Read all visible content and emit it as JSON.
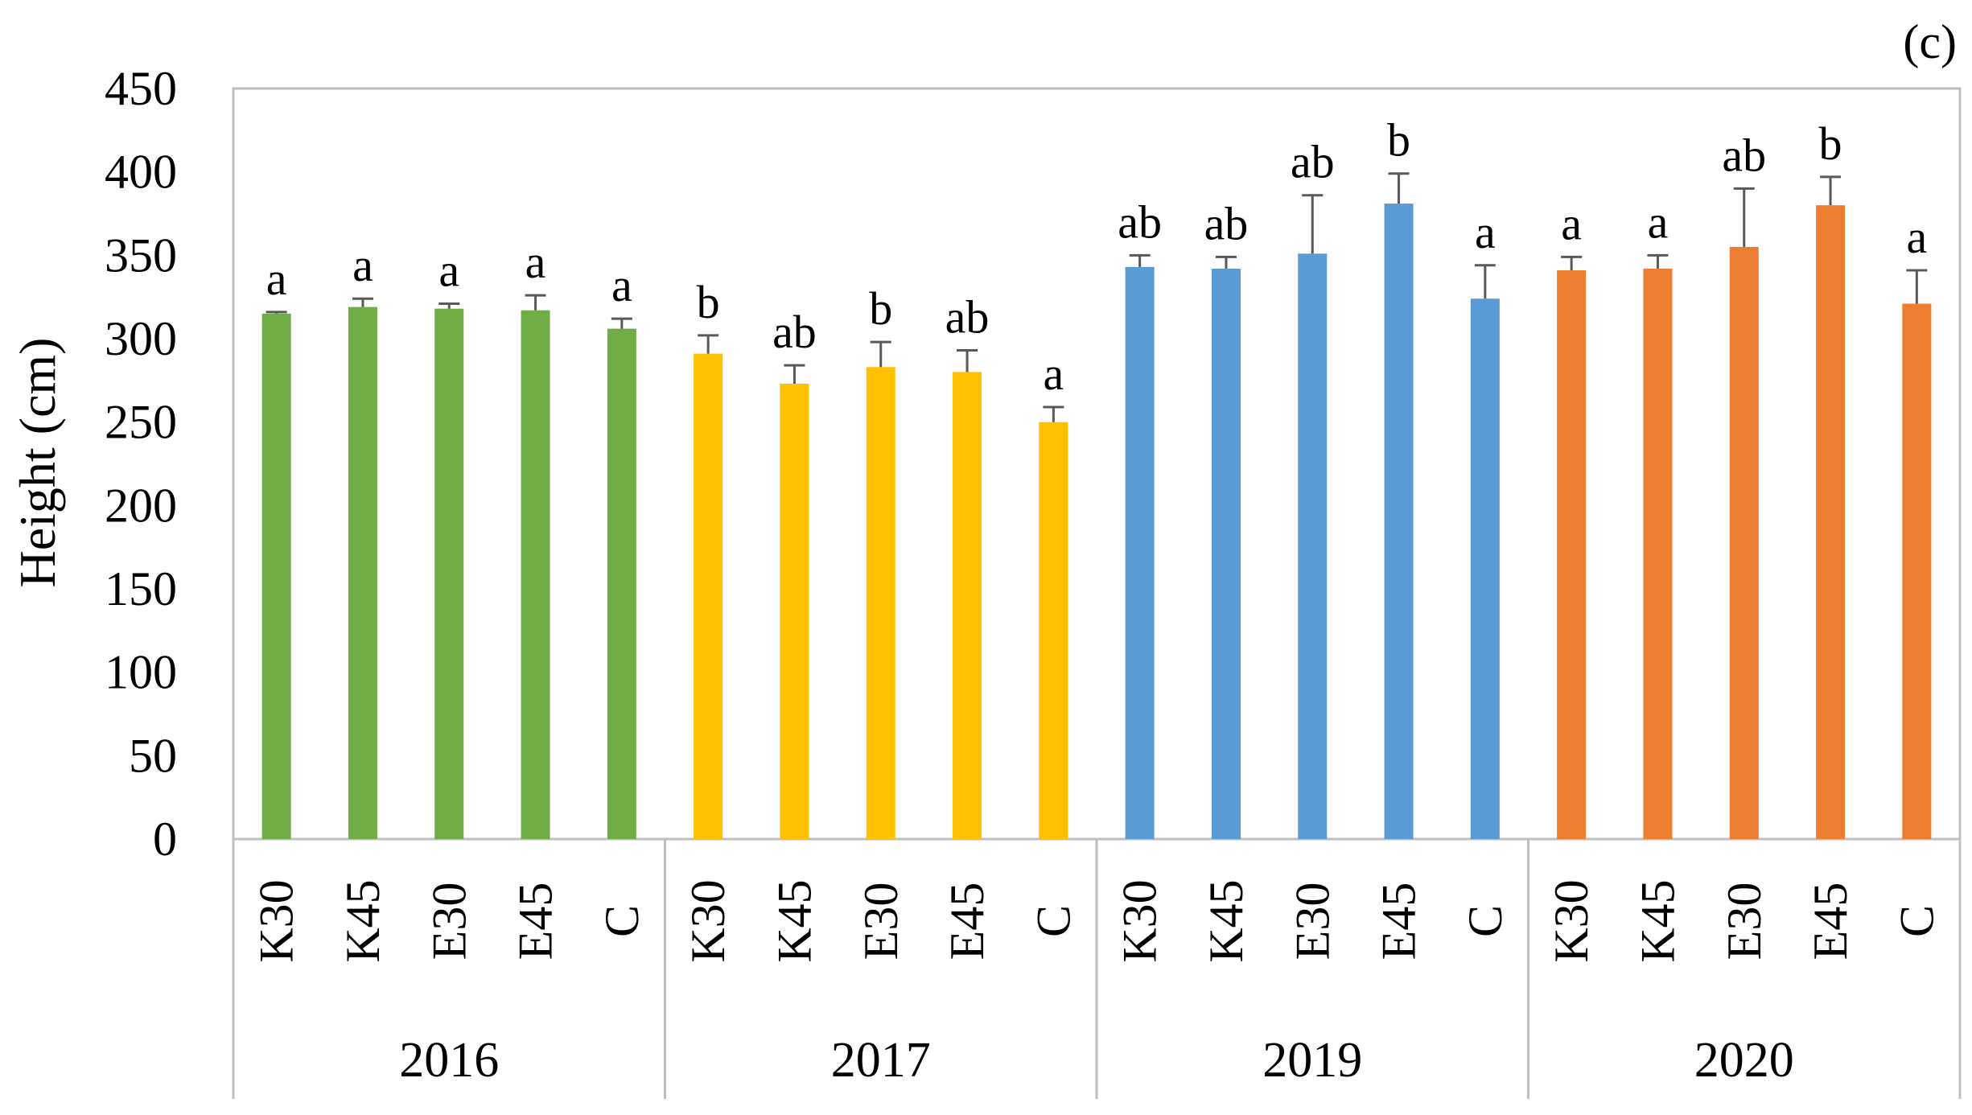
{
  "panel_label": "(c)",
  "chart_data": {
    "type": "bar",
    "ylabel": "Height (cm)",
    "ylim": [
      0,
      450
    ],
    "yticks": [
      0,
      50,
      100,
      150,
      200,
      250,
      300,
      350,
      400,
      450
    ],
    "grid": false,
    "groups": [
      {
        "name": "2016",
        "color": "#70AD47",
        "bars": [
          {
            "category": "K30",
            "value": 315,
            "error": 1,
            "sig": "a"
          },
          {
            "category": "K45",
            "value": 319,
            "error": 5,
            "sig": "a"
          },
          {
            "category": "E30",
            "value": 318,
            "error": 3,
            "sig": "a"
          },
          {
            "category": "E45",
            "value": 317,
            "error": 9,
            "sig": "a"
          },
          {
            "category": "C",
            "value": 306,
            "error": 6,
            "sig": "a"
          }
        ]
      },
      {
        "name": "2017",
        "color": "#FFC000",
        "bars": [
          {
            "category": "K30",
            "value": 291,
            "error": 11,
            "sig": "b"
          },
          {
            "category": "K45",
            "value": 273,
            "error": 11,
            "sig": "ab"
          },
          {
            "category": "E30",
            "value": 283,
            "error": 15,
            "sig": "b"
          },
          {
            "category": "E45",
            "value": 280,
            "error": 13,
            "sig": "ab"
          },
          {
            "category": "C",
            "value": 250,
            "error": 9,
            "sig": "a"
          }
        ]
      },
      {
        "name": "2019",
        "color": "#5B9BD5",
        "bars": [
          {
            "category": "K30",
            "value": 343,
            "error": 7,
            "sig": "ab"
          },
          {
            "category": "K45",
            "value": 342,
            "error": 7,
            "sig": "ab"
          },
          {
            "category": "E30",
            "value": 351,
            "error": 35,
            "sig": "ab"
          },
          {
            "category": "E45",
            "value": 381,
            "error": 18,
            "sig": "b"
          },
          {
            "category": "C",
            "value": 324,
            "error": 20,
            "sig": "a"
          }
        ]
      },
      {
        "name": "2020",
        "color": "#ED7D31",
        "bars": [
          {
            "category": "K30",
            "value": 341,
            "error": 8,
            "sig": "a"
          },
          {
            "category": "K45",
            "value": 342,
            "error": 8,
            "sig": "a"
          },
          {
            "category": "E30",
            "value": 355,
            "error": 35,
            "sig": "ab"
          },
          {
            "category": "E45",
            "value": 380,
            "error": 17,
            "sig": "b"
          },
          {
            "category": "C",
            "value": 321,
            "error": 20,
            "sig": "a"
          }
        ]
      }
    ]
  }
}
